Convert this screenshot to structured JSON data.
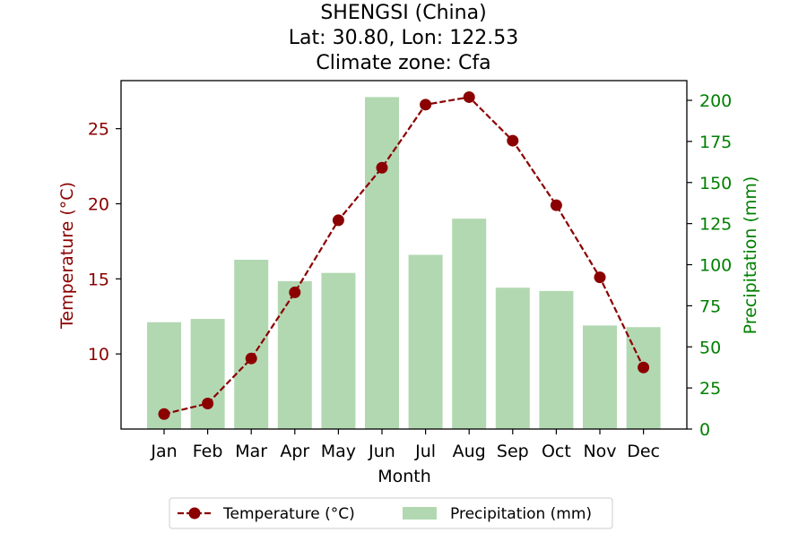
{
  "chart_data": {
    "type": "bar+line",
    "title_lines": [
      "SHENGSI (China)",
      "Lat: 30.80, Lon: 122.53",
      "Climate zone: Cfa"
    ],
    "xlabel": "Month",
    "ylabel_left": "Temperature (°C)",
    "ylabel_right": "Precipitation (mm)",
    "categories": [
      "Jan",
      "Feb",
      "Mar",
      "Apr",
      "May",
      "Jun",
      "Jul",
      "Aug",
      "Sep",
      "Oct",
      "Nov",
      "Dec"
    ],
    "temperature": {
      "name": "Temperature (°C)",
      "values": [
        6.0,
        6.7,
        9.7,
        14.1,
        18.9,
        22.4,
        26.6,
        27.1,
        24.2,
        19.9,
        15.1,
        9.1
      ],
      "color": "#8b0000",
      "ylim": [
        5.0,
        28.2
      ],
      "ticks": [
        10,
        15,
        20,
        25
      ]
    },
    "precipitation": {
      "name": "Precipitation (mm)",
      "values": [
        65,
        67,
        103,
        90,
        95,
        202,
        106,
        128,
        86,
        84,
        63,
        62
      ],
      "color": "#b2d8b2",
      "ylim": [
        0,
        212
      ],
      "ticks": [
        0,
        25,
        50,
        75,
        100,
        125,
        150,
        175,
        200
      ]
    },
    "legend": {
      "items": [
        "Temperature (°C)",
        "Precipitation (mm)"
      ],
      "placement": "bottom-center"
    },
    "colors": {
      "temperature_axis": "#8b0000",
      "precipitation_axis": "#008000",
      "text": "#000000"
    }
  }
}
